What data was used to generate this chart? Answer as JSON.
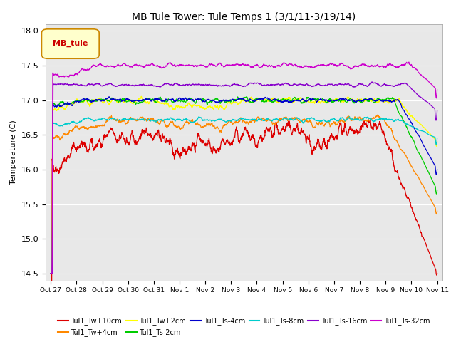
{
  "title": "MB Tule Tower: Tule Temps 1 (3/1/11-3/19/14)",
  "ylabel": "Temperature (C)",
  "ylim": [
    14.4,
    18.1
  ],
  "yticks": [
    14.5,
    15.0,
    15.5,
    16.0,
    16.5,
    17.0,
    17.5,
    18.0
  ],
  "legend_box_label": "MB_tule",
  "series": [
    {
      "label": "Tul1_Tw+10cm",
      "color": "#dd0000"
    },
    {
      "label": "Tul1_Tw+4cm",
      "color": "#ff8800"
    },
    {
      "label": "Tul1_Tw+2cm",
      "color": "#ffff00"
    },
    {
      "label": "Tul1_Ts-2cm",
      "color": "#00cc00"
    },
    {
      "label": "Tul1_Ts-4cm",
      "color": "#0000cc"
    },
    {
      "label": "Tul1_Ts-8cm",
      "color": "#00cccc"
    },
    {
      "label": "Tul1_Ts-16cm",
      "color": "#8800cc"
    },
    {
      "label": "Tul1_Ts-32cm",
      "color": "#cc00cc"
    }
  ],
  "xtick_labels": [
    "Oct 27",
    "Oct 28",
    "Oct 29",
    "Oct 30",
    "Oct 31",
    "Nov 1",
    "Nov 2",
    "Nov 3",
    "Nov 4",
    "Nov 5",
    "Nov 6",
    "Nov 7",
    "Nov 8",
    "Nov 9",
    "Nov 10",
    "Nov 11"
  ],
  "background_color": "#ffffff",
  "plot_bg_color": "#e8e8e8"
}
